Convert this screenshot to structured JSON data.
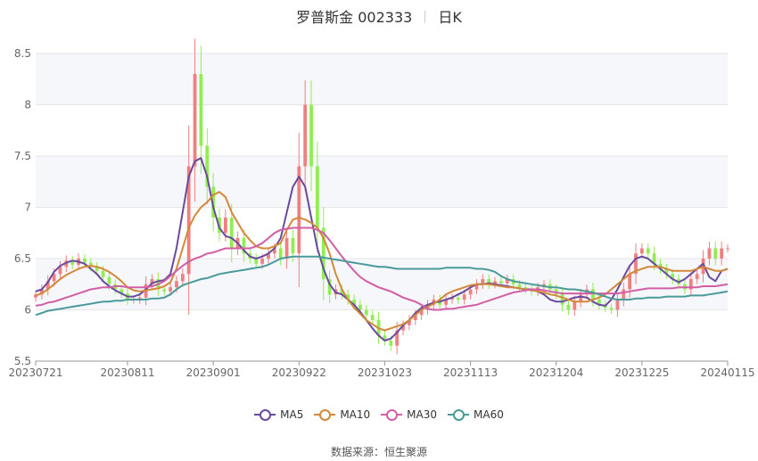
{
  "title": {
    "name": "罗普斯金 002333",
    "period": "日K"
  },
  "source": {
    "label": "数据来源：",
    "value": "恒生聚源"
  },
  "colors": {
    "up": "#f08080",
    "down": "#90ee50",
    "MA5": "#6a4a9c",
    "MA10": "#d4883a",
    "MA30": "#d35ea6",
    "MA60": "#4a9a9a",
    "grid": "#e6e6e6",
    "band": "#f5f7fb"
  },
  "chart_data": {
    "type": "candlestick",
    "ylim": [
      5.5,
      8.5
    ],
    "y_ticks": [
      "5.5",
      "6",
      "6.5",
      "7",
      "7.5",
      "8",
      "8.5"
    ],
    "x_tick_labels": [
      {
        "index": 0,
        "label": "20230721"
      },
      {
        "index": 15,
        "label": "20230811"
      },
      {
        "index": 29,
        "label": "20230901"
      },
      {
        "index": 43,
        "label": "20230922"
      },
      {
        "index": 57,
        "label": "20231023"
      },
      {
        "index": 71,
        "label": "20231113"
      },
      {
        "index": 85,
        "label": "20231204"
      },
      {
        "index": 99,
        "label": "20231225"
      },
      {
        "index": 113,
        "label": "20240115"
      }
    ],
    "closes": [
      6.15,
      6.2,
      6.28,
      6.35,
      6.42,
      6.48,
      6.44,
      6.5,
      6.46,
      6.42,
      6.38,
      6.32,
      6.25,
      6.2,
      6.16,
      6.1,
      6.1,
      6.12,
      6.25,
      6.3,
      6.2,
      6.18,
      6.22,
      6.28,
      6.35,
      7.4,
      8.3,
      7.6,
      7.2,
      6.9,
      6.75,
      6.9,
      6.6,
      6.7,
      6.55,
      6.5,
      6.45,
      6.5,
      6.55,
      6.6,
      6.5,
      6.7,
      6.55,
      7.4,
      8.0,
      7.4,
      6.8,
      6.3,
      6.15,
      6.2,
      6.15,
      6.1,
      6.05,
      6.0,
      5.95,
      5.9,
      5.75,
      5.7,
      5.65,
      5.8,
      5.85,
      5.9,
      5.95,
      6.0,
      6.05,
      6.1,
      6.05,
      6.1,
      6.12,
      6.1,
      6.15,
      6.2,
      6.25,
      6.3,
      6.25,
      6.28,
      6.26,
      6.3,
      6.25,
      6.22,
      6.2,
      6.18,
      6.22,
      6.25,
      6.2,
      6.15,
      6.05,
      6.0,
      6.08,
      6.15,
      6.2,
      6.1,
      6.05,
      6.02,
      6.0,
      6.1,
      6.2,
      6.35,
      6.55,
      6.6,
      6.55,
      6.45,
      6.4,
      6.35,
      6.3,
      6.25,
      6.2,
      6.3,
      6.35,
      6.5,
      6.6,
      6.5,
      6.6,
      6.6
    ],
    "series": [
      {
        "name": "MA5",
        "values": [
          6.18,
          6.2,
          6.27,
          6.37,
          6.43,
          6.46,
          6.48,
          6.47,
          6.45,
          6.4,
          6.35,
          6.28,
          6.23,
          6.19,
          6.16,
          6.13,
          6.13,
          6.15,
          6.2,
          6.26,
          6.28,
          6.29,
          6.35,
          6.6,
          6.95,
          7.3,
          7.45,
          7.48,
          7.3,
          7.0,
          6.8,
          6.72,
          6.7,
          6.65,
          6.58,
          6.52,
          6.5,
          6.52,
          6.55,
          6.6,
          6.7,
          6.95,
          7.2,
          7.3,
          7.2,
          6.9,
          6.6,
          6.4,
          6.25,
          6.17,
          6.15,
          6.1,
          6.05,
          5.98,
          5.9,
          5.82,
          5.75,
          5.7,
          5.72,
          5.78,
          5.85,
          5.9,
          5.97,
          6.02,
          6.05,
          6.07,
          6.08,
          6.1,
          6.12,
          6.15,
          6.18,
          6.22,
          6.25,
          6.25,
          6.26,
          6.25,
          6.24,
          6.23,
          6.22,
          6.21,
          6.2,
          6.2,
          6.18,
          6.15,
          6.1,
          6.08,
          6.08,
          6.1,
          6.12,
          6.13,
          6.12,
          6.08,
          6.05,
          6.04,
          6.1,
          6.2,
          6.32,
          6.43,
          6.5,
          6.52,
          6.5,
          6.45,
          6.4,
          6.35,
          6.3,
          6.27,
          6.3,
          6.35,
          6.4,
          6.45,
          6.32,
          6.28,
          6.38,
          6.4
        ]
      },
      {
        "name": "MA10",
        "values": [
          6.14,
          6.16,
          6.2,
          6.25,
          6.3,
          6.34,
          6.37,
          6.4,
          6.42,
          6.43,
          6.42,
          6.4,
          6.37,
          6.33,
          6.28,
          6.22,
          6.19,
          6.18,
          6.19,
          6.2,
          6.21,
          6.23,
          6.27,
          6.4,
          6.6,
          6.8,
          6.92,
          7.0,
          7.05,
          7.12,
          7.15,
          7.1,
          6.95,
          6.85,
          6.75,
          6.68,
          6.62,
          6.6,
          6.6,
          6.62,
          6.65,
          6.78,
          6.88,
          6.9,
          6.88,
          6.85,
          6.8,
          6.7,
          6.55,
          6.35,
          6.2,
          6.1,
          6.02,
          5.96,
          5.9,
          5.86,
          5.82,
          5.8,
          5.82,
          5.84,
          5.86,
          5.9,
          5.95,
          6.0,
          6.03,
          6.06,
          6.1,
          6.15,
          6.18,
          6.2,
          6.22,
          6.24,
          6.25,
          6.25,
          6.25,
          6.24,
          6.23,
          6.22,
          6.22,
          6.21,
          6.2,
          6.19,
          6.18,
          6.17,
          6.15,
          6.14,
          6.12,
          6.1,
          6.08,
          6.08,
          6.08,
          6.1,
          6.12,
          6.15,
          6.2,
          6.25,
          6.3,
          6.35,
          6.38,
          6.4,
          6.42,
          6.42,
          6.42,
          6.4,
          6.38,
          6.38,
          6.38,
          6.38,
          6.4,
          6.42,
          6.4,
          6.38,
          6.38,
          6.4
        ]
      },
      {
        "name": "MA30",
        "values": [
          6.04,
          6.05,
          6.07,
          6.08,
          6.1,
          6.12,
          6.14,
          6.16,
          6.18,
          6.2,
          6.21,
          6.22,
          6.22,
          6.23,
          6.23,
          6.22,
          6.22,
          6.22,
          6.22,
          6.23,
          6.25,
          6.28,
          6.33,
          6.38,
          6.43,
          6.47,
          6.5,
          6.52,
          6.55,
          6.56,
          6.58,
          6.6,
          6.6,
          6.6,
          6.6,
          6.6,
          6.62,
          6.65,
          6.7,
          6.75,
          6.78,
          6.79,
          6.8,
          6.8,
          6.8,
          6.8,
          6.78,
          6.75,
          6.68,
          6.6,
          6.52,
          6.45,
          6.38,
          6.32,
          6.28,
          6.25,
          6.22,
          6.2,
          6.18,
          6.15,
          6.12,
          6.1,
          6.08,
          6.05,
          6.01,
          6.0,
          6.0,
          6.01,
          6.01,
          6.02,
          6.03,
          6.04,
          6.05,
          6.07,
          6.09,
          6.11,
          6.13,
          6.15,
          6.17,
          6.18,
          6.19,
          6.2,
          6.2,
          6.19,
          6.18,
          6.17,
          6.16,
          6.16,
          6.16,
          6.16,
          6.16,
          6.16,
          6.16,
          6.16,
          6.16,
          6.16,
          6.17,
          6.18,
          6.19,
          6.2,
          6.21,
          6.21,
          6.21,
          6.21,
          6.21,
          6.22,
          6.22,
          6.22,
          6.22,
          6.23,
          6.23,
          6.23,
          6.24,
          6.25
        ]
      },
      {
        "name": "MA60",
        "values": [
          5.95,
          5.97,
          5.99,
          6.0,
          6.01,
          6.02,
          6.03,
          6.04,
          6.05,
          6.06,
          6.07,
          6.08,
          6.08,
          6.09,
          6.09,
          6.1,
          6.1,
          6.1,
          6.1,
          6.11,
          6.11,
          6.12,
          6.15,
          6.2,
          6.24,
          6.26,
          6.28,
          6.3,
          6.31,
          6.33,
          6.35,
          6.36,
          6.37,
          6.38,
          6.39,
          6.4,
          6.41,
          6.42,
          6.44,
          6.47,
          6.5,
          6.51,
          6.52,
          6.52,
          6.52,
          6.52,
          6.52,
          6.51,
          6.5,
          6.49,
          6.48,
          6.47,
          6.46,
          6.45,
          6.44,
          6.43,
          6.42,
          6.42,
          6.41,
          6.4,
          6.4,
          6.4,
          6.4,
          6.4,
          6.4,
          6.4,
          6.4,
          6.41,
          6.41,
          6.41,
          6.41,
          6.41,
          6.4,
          6.4,
          6.39,
          6.37,
          6.33,
          6.3,
          6.28,
          6.27,
          6.26,
          6.25,
          6.24,
          6.23,
          6.22,
          6.22,
          6.21,
          6.2,
          6.2,
          6.19,
          6.18,
          6.17,
          6.15,
          6.13,
          6.11,
          6.1,
          6.1,
          6.1,
          6.11,
          6.11,
          6.12,
          6.12,
          6.12,
          6.13,
          6.13,
          6.13,
          6.13,
          6.14,
          6.14,
          6.14,
          6.15,
          6.16,
          6.17,
          6.18
        ]
      }
    ],
    "legend": [
      "MA5",
      "MA10",
      "MA30",
      "MA60"
    ],
    "legend_position": "bottom"
  }
}
